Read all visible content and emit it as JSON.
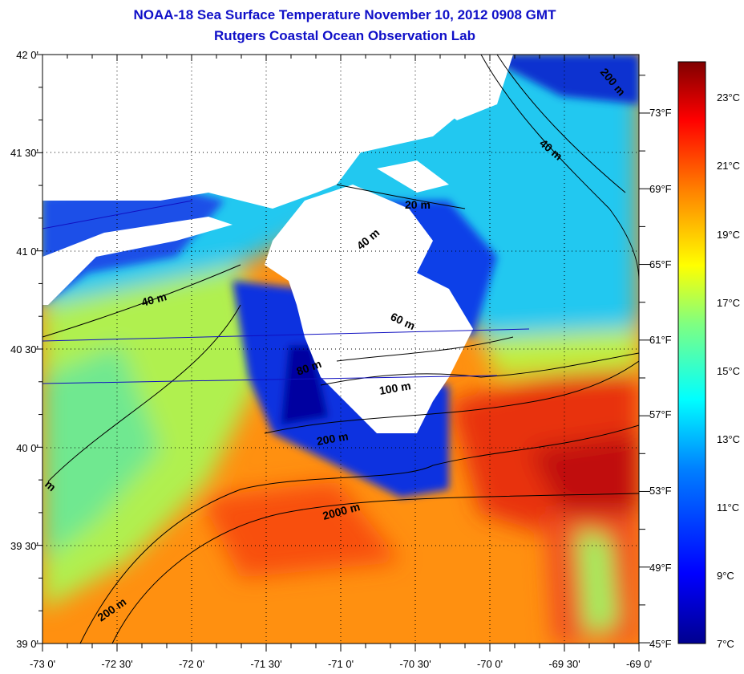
{
  "title": {
    "line1": "NOAA-18 Sea Surface Temperature November 10, 2012 0908 GMT",
    "line2": "Rutgers Coastal Ocean Observation Lab"
  },
  "map": {
    "lon_range": [
      -73,
      -69
    ],
    "lat_range": [
      39,
      42
    ],
    "lat_labels": [
      "42 0'",
      "41 30'",
      "41 0'",
      "40 30'",
      "40 0'",
      "39 30'",
      "39 0'"
    ],
    "lon_labels": [
      "-73 0'",
      "-72 30'",
      "-72 0'",
      "-71 30'",
      "-71 0'",
      "-70 30'",
      "-70 0'",
      "-69 30'",
      "-69 0'"
    ],
    "fahrenheit_labels": [
      "73°F",
      "69°F",
      "65°F",
      "61°F",
      "57°F",
      "53°F",
      "49°F",
      "45°F"
    ],
    "depth_labels": [
      "200 m",
      "40 m",
      "20 m",
      "40 m",
      "40 m",
      "60 m",
      "80 m",
      "100 m",
      "200 m",
      "2000 m",
      "200 m",
      "m"
    ],
    "land_color": "#ffffff",
    "coast_color": "#000000"
  },
  "colorbar": {
    "range_c": [
      7,
      24
    ],
    "labels": [
      "23°C",
      "21°C",
      "19°C",
      "17°C",
      "15°C",
      "13°C",
      "11°C",
      "9°C",
      "7°C"
    ],
    "colors": [
      "#800000",
      "#ff0000",
      "#ff8000",
      "#ffff00",
      "#80ff80",
      "#00ffff",
      "#0080ff",
      "#0000ff",
      "#00008f"
    ]
  }
}
